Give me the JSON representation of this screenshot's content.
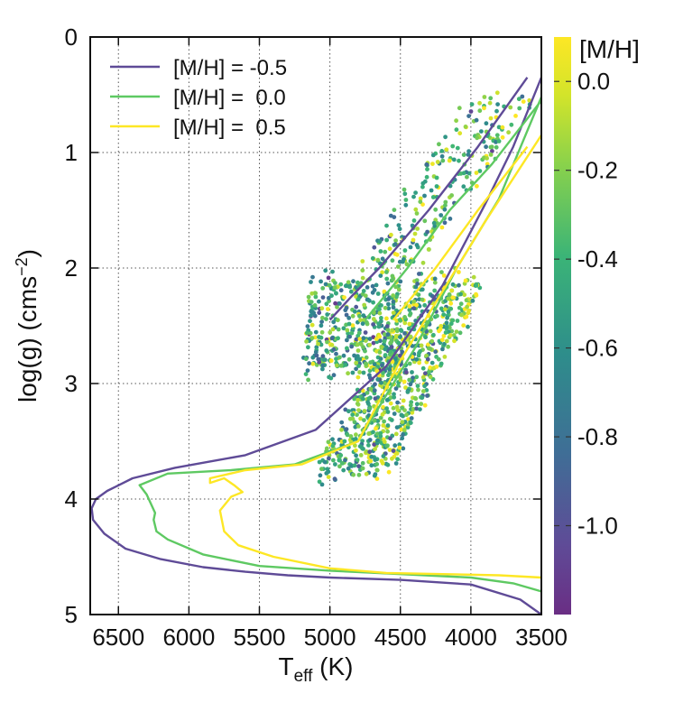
{
  "chart_data": {
    "type": "scatter",
    "xlabel_main": "T",
    "xlabel_sub": "eff",
    "xlabel_unit": " (K)",
    "ylabel_main": "log(g) (cms",
    "ylabel_sup": "−2",
    "ylabel_close": ")",
    "xlim": [
      6700,
      3500
    ],
    "ylim": [
      0,
      5
    ],
    "xticks": [
      6500,
      6000,
      5500,
      5000,
      4500,
      4000,
      3500
    ],
    "yticks": [
      0,
      1,
      2,
      3,
      4,
      5
    ],
    "grid": true,
    "colorbar": {
      "label": "[M/H]",
      "range": [
        -1.2,
        0.1
      ],
      "ticks": [
        0.0,
        -0.2,
        -0.4,
        -0.6,
        -0.8,
        -1.0
      ],
      "tick_labels": [
        "0.0",
        "-0.2",
        "-0.4",
        "-0.6",
        "-0.8",
        "-1.0"
      ]
    },
    "legend": {
      "placement": "top-left",
      "entries": [
        {
          "label": "[M/H] = -0.5",
          "color": "#5f4b97"
        },
        {
          "label": "[M/H] =  0.0",
          "color": "#5ec962"
        },
        {
          "label": "[M/H] =  0.5",
          "color": "#fde725"
        }
      ]
    },
    "isochrones": [
      {
        "name": "[M/H] = -0.5",
        "color": "#5f4b97",
        "x": [
          3500,
          3650,
          4000,
          4500,
          5000,
          5300,
          5600,
          5900,
          6200,
          6450,
          6600,
          6680,
          6690,
          6660,
          6580,
          6400,
          6100,
          5600,
          5100,
          4600,
          4200,
          3900,
          3700,
          3500
        ],
        "y": [
          5.0,
          4.87,
          4.74,
          4.7,
          4.68,
          4.66,
          4.63,
          4.59,
          4.52,
          4.43,
          4.3,
          4.18,
          4.08,
          4.0,
          3.93,
          3.82,
          3.73,
          3.62,
          3.4,
          2.85,
          2.15,
          1.45,
          0.95,
          0.35
        ]
      },
      {
        "name": "[M/H] = -0.5 (helium burning loop)",
        "color": "#5f4b97",
        "x": [
          5000,
          4850,
          4650,
          4300,
          3950,
          3600
        ],
        "y": [
          2.45,
          2.25,
          2.0,
          1.5,
          0.95,
          0.35
        ]
      },
      {
        "name": "[M/H] = 0.0",
        "color": "#5ec962",
        "x": [
          3500,
          3700,
          4000,
          4500,
          5000,
          5500,
          5900,
          6150,
          6230,
          6250,
          6240,
          6300,
          6350,
          6150,
          5700,
          5250,
          4800,
          4400,
          4100,
          3800,
          3500
        ],
        "y": [
          4.8,
          4.73,
          4.68,
          4.65,
          4.62,
          4.58,
          4.48,
          4.35,
          4.28,
          4.18,
          4.12,
          3.96,
          3.88,
          3.78,
          3.75,
          3.7,
          3.5,
          2.7,
          2.0,
          1.4,
          0.52
        ]
      },
      {
        "name": "[M/H] = 0.0 (helium burning loop)",
        "color": "#5ec962",
        "x": [
          4750,
          4450,
          4150,
          3850,
          3500
        ],
        "y": [
          2.45,
          2.0,
          1.5,
          1.1,
          0.55
        ]
      },
      {
        "name": "[M/H] = 0.5",
        "color": "#fde725",
        "x": [
          3500,
          3800,
          4200,
          4600,
          5000,
          5400,
          5650,
          5750,
          5780,
          5700,
          5620,
          5680,
          5750,
          5850,
          5850,
          5600,
          5200,
          4800,
          4500,
          4200,
          3900,
          3500
        ],
        "y": [
          4.68,
          4.66,
          4.65,
          4.64,
          4.6,
          4.5,
          4.4,
          4.28,
          4.1,
          3.98,
          3.94,
          3.88,
          3.82,
          3.86,
          3.82,
          3.75,
          3.7,
          3.5,
          2.8,
          2.2,
          1.6,
          0.85
        ]
      },
      {
        "name": "[M/H] = 0.5 (helium burning loop)",
        "color": "#fde725",
        "x": [
          4550,
          4250,
          3950,
          3600
        ],
        "y": [
          2.45,
          2.0,
          1.5,
          0.95
        ]
      }
    ],
    "scatter_cloud": {
      "description_only": false,
      "teff_center": 4900,
      "teff_spread": 200,
      "logg_center": 2.85,
      "logg_spread": 0.75,
      "count": 1400,
      "mh_range": [
        -1.2,
        0.1
      ]
    }
  }
}
